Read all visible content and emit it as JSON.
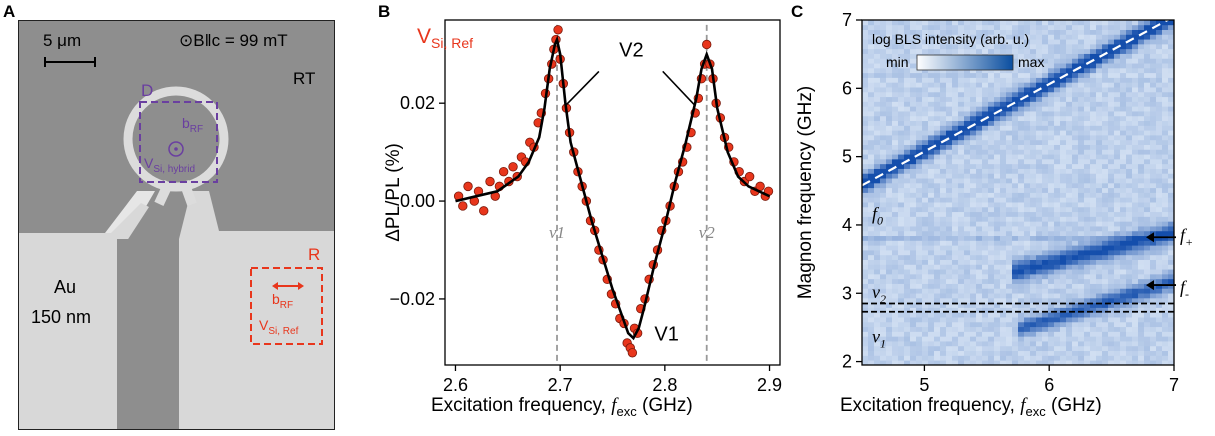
{
  "panel_labels": {
    "a": "A",
    "b": "B",
    "c": "C"
  },
  "micrograph": {
    "scale_bar_label": "5 μm",
    "field_label": "⊙B‖c = 99 mT",
    "temperature_label": "RT",
    "region_d_label": "D",
    "region_r_label": "R",
    "brf_label": "b",
    "brf_sub": "RF",
    "hybrid_label": "V",
    "hybrid_sub": "Si, hybrid",
    "ref_label": "V",
    "ref_sub": "Si, Ref",
    "material_label": "Au",
    "thickness_label": "150 nm",
    "colors": {
      "purple": "#6a3fa0",
      "red": "#e8361c"
    }
  },
  "chart_data": [
    {
      "type": "scatter",
      "panel": "B",
      "legend_label": "V",
      "legend_sub": "Si, Ref",
      "xlabel": "Excitation frequency, ",
      "xlabel_italic": "f",
      "xlabel_sub": "exc",
      "xlabel_unit": " (GHz)",
      "ylabel": "ΔPL/PL (%)",
      "xlim": [
        2.59,
        2.91
      ],
      "ylim": [
        -0.0335,
        0.037
      ],
      "xticks": [
        2.6,
        2.7,
        2.8,
        2.9
      ],
      "xtick_labels": [
        "2.6",
        "2.7",
        "2.8",
        "2.9"
      ],
      "yticks": [
        -0.02,
        0.0,
        0.02
      ],
      "ytick_labels": [
        "−0.02",
        "0.00",
        "0.02"
      ],
      "nu_lines": [
        2.697,
        2.84
      ],
      "nu_labels": [
        "ν1",
        "ν2"
      ],
      "annotations": {
        "v2": "V2",
        "v1": "V1"
      },
      "fit": {
        "x": [
          2.6,
          2.62,
          2.64,
          2.66,
          2.67,
          2.68,
          2.685,
          2.69,
          2.695,
          2.697,
          2.7,
          2.705,
          2.71,
          2.72,
          2.73,
          2.74,
          2.75,
          2.76,
          2.765,
          2.77,
          2.775,
          2.78,
          2.79,
          2.8,
          2.81,
          2.82,
          2.83,
          2.835,
          2.84,
          2.845,
          2.85,
          2.86,
          2.87,
          2.88,
          2.9
        ],
        "y": [
          0.0,
          0.001,
          0.002,
          0.005,
          0.008,
          0.013,
          0.019,
          0.027,
          0.032,
          0.033,
          0.03,
          0.02,
          0.012,
          0.004,
          -0.004,
          -0.011,
          -0.018,
          -0.024,
          -0.027,
          -0.028,
          -0.026,
          -0.022,
          -0.013,
          -0.005,
          0.004,
          0.012,
          0.021,
          0.027,
          0.03,
          0.027,
          0.019,
          0.01,
          0.005,
          0.003,
          0.001
        ]
      },
      "points": {
        "x": [
          2.603,
          2.607,
          2.612,
          2.618,
          2.622,
          2.627,
          2.633,
          2.638,
          2.642,
          2.646,
          2.651,
          2.655,
          2.659,
          2.663,
          2.667,
          2.671,
          2.675,
          2.679,
          2.682,
          2.686,
          2.689,
          2.692,
          2.694,
          2.696,
          2.698,
          2.7,
          2.703,
          2.706,
          2.709,
          2.713,
          2.717,
          2.721,
          2.725,
          2.729,
          2.733,
          2.737,
          2.741,
          2.745,
          2.749,
          2.753,
          2.757,
          2.761,
          2.764,
          2.767,
          2.769,
          2.771,
          2.774,
          2.777,
          2.781,
          2.785,
          2.789,
          2.793,
          2.797,
          2.801,
          2.805,
          2.809,
          2.813,
          2.817,
          2.821,
          2.825,
          2.829,
          2.832,
          2.835,
          2.838,
          2.84,
          2.843,
          2.846,
          2.849,
          2.853,
          2.857,
          2.861,
          2.866,
          2.871,
          2.876,
          2.881,
          2.886,
          2.891,
          2.896,
          2.899
        ],
        "y": [
          0.001,
          -0.001,
          0.003,
          0.0,
          0.002,
          -0.002,
          0.004,
          0.001,
          0.003,
          0.006,
          0.004,
          0.007,
          0.005,
          0.009,
          0.008,
          0.012,
          0.011,
          0.016,
          0.018,
          0.022,
          0.025,
          0.028,
          0.031,
          0.033,
          0.035,
          0.029,
          0.024,
          0.019,
          0.014,
          0.01,
          0.006,
          0.003,
          0.0,
          -0.004,
          -0.006,
          -0.01,
          -0.012,
          -0.016,
          -0.019,
          -0.021,
          -0.024,
          -0.025,
          -0.029,
          -0.03,
          -0.031,
          -0.026,
          -0.027,
          -0.022,
          -0.02,
          -0.016,
          -0.013,
          -0.01,
          -0.006,
          -0.004,
          -0.001,
          0.003,
          0.006,
          0.008,
          0.011,
          0.014,
          0.018,
          0.021,
          0.025,
          0.028,
          0.032,
          0.028,
          0.025,
          0.02,
          0.017,
          0.013,
          0.011,
          0.008,
          0.006,
          0.004,
          0.005,
          0.002,
          0.003,
          0.001,
          0.002
        ]
      }
    },
    {
      "type": "heatmap",
      "panel": "C",
      "colorbar_title": "log BLS intensity (arb. u.)",
      "colorbar_min": "min",
      "colorbar_max": "max",
      "xlabel": "Excitation frequency, ",
      "xlabel_italic": "f",
      "xlabel_sub": "exc",
      "xlabel_unit": " (GHz)",
      "ylabel": "Magnon frequency (GHz)",
      "xlim": [
        4.5,
        7.0
      ],
      "ylim": [
        1.95,
        7.0
      ],
      "xticks": [
        5,
        6,
        7
      ],
      "xtick_labels": [
        "5",
        "6",
        "7"
      ],
      "yticks": [
        2,
        3,
        4,
        5,
        6,
        7
      ],
      "ytick_labels": [
        "2",
        "3",
        "4",
        "5",
        "6",
        "7"
      ],
      "dispersion_line": {
        "x": [
          4.5,
          7.0
        ],
        "y": [
          4.58,
          7.05
        ]
      },
      "f_plus_line": 3.82,
      "nu_levels": [
        2.73,
        2.85
      ],
      "bands": [
        {
          "name": "f0",
          "x": [
            4.5,
            7.0
          ],
          "y": [
            4.6,
            7.05
          ],
          "strength": 1.0,
          "width": 0.13
        },
        {
          "name": "f+",
          "x": [
            5.75,
            6.9
          ],
          "y": [
            3.33,
            3.85
          ],
          "strength": 0.8,
          "width": 0.14
        },
        {
          "name": "f-",
          "x": [
            5.8,
            6.9
          ],
          "y": [
            2.5,
            3.12
          ],
          "strength": 0.7,
          "width": 0.12
        }
      ],
      "labels": {
        "f0": "f",
        "f0_sub": "0",
        "fplus": "f",
        "fplus_sub": "+",
        "fminus": "f",
        "fminus_sub": "-",
        "nu2": "ν",
        "nu2_sub": "2",
        "nu1": "ν",
        "nu1_sub": "1"
      }
    }
  ]
}
